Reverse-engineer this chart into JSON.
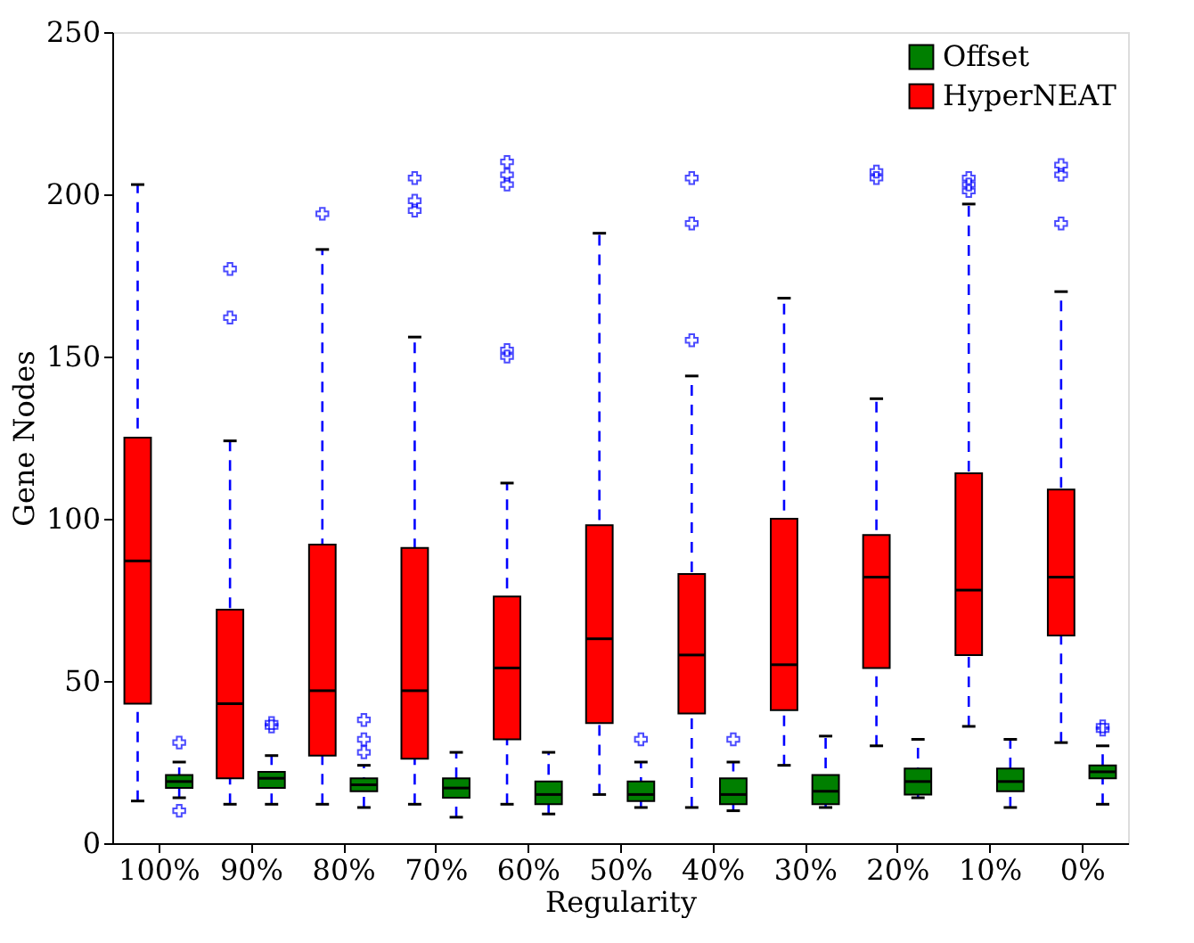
{
  "chart_data": {
    "type": "box",
    "xlabel": "Regularity",
    "ylabel": "Gene Nodes",
    "categories": [
      "100%",
      "90%",
      "80%",
      "70%",
      "60%",
      "50%",
      "40%",
      "30%",
      "20%",
      "10%",
      "0%"
    ],
    "ylim": [
      0,
      250
    ],
    "yticks": [
      0,
      50,
      100,
      150,
      200,
      250
    ],
    "legend": "top right",
    "marker": "cross",
    "series": [
      {
        "name": "Offset",
        "color": "#007f00",
        "boxes": [
          {
            "low": 14,
            "q1": 17,
            "median": 19,
            "q3": 21,
            "high": 25,
            "outliers": [
              31,
              10
            ]
          },
          {
            "low": 12,
            "q1": 17,
            "median": 20,
            "q3": 22,
            "high": 27,
            "outliers": [
              36,
              37
            ]
          },
          {
            "low": 11,
            "q1": 16,
            "median": 18,
            "q3": 20,
            "high": 24,
            "outliers": [
              28,
              32,
              38
            ]
          },
          {
            "low": 8,
            "q1": 14,
            "median": 17,
            "q3": 20,
            "high": 28
          },
          {
            "low": 9,
            "q1": 12,
            "median": 15,
            "q3": 19,
            "high": 28
          },
          {
            "low": 11,
            "q1": 13,
            "median": 15,
            "q3": 19,
            "high": 25,
            "outliers": [
              32
            ]
          },
          {
            "low": 10,
            "q1": 12,
            "median": 15,
            "q3": 20,
            "high": 25,
            "outliers": [
              32
            ]
          },
          {
            "low": 11,
            "q1": 12,
            "median": 16,
            "q3": 21,
            "high": 33
          },
          {
            "low": 14,
            "q1": 15,
            "median": 19,
            "q3": 23,
            "high": 32
          },
          {
            "low": 11,
            "q1": 16,
            "median": 19,
            "q3": 23,
            "high": 32
          },
          {
            "low": 12,
            "q1": 20,
            "median": 22,
            "q3": 24,
            "high": 30,
            "outliers": [
              35,
              36
            ]
          }
        ]
      },
      {
        "name": "HyperNEAT",
        "color": "#ff0000",
        "boxes": [
          {
            "low": 13,
            "q1": 43,
            "median": 87,
            "q3": 125,
            "high": 203
          },
          {
            "low": 12,
            "q1": 20,
            "median": 43,
            "q3": 72,
            "high": 124,
            "outliers": [
              162,
              177
            ]
          },
          {
            "low": 12,
            "q1": 27,
            "median": 47,
            "q3": 92,
            "high": 183,
            "outliers": [
              194
            ]
          },
          {
            "low": 12,
            "q1": 26,
            "median": 47,
            "q3": 91,
            "high": 156,
            "outliers": [
              195,
              198,
              205
            ]
          },
          {
            "low": 12,
            "q1": 32,
            "median": 54,
            "q3": 76,
            "high": 111,
            "outliers": [
              150,
              152,
              203,
              206,
              210
            ]
          },
          {
            "low": 15,
            "q1": 37,
            "median": 63,
            "q3": 98,
            "high": 188
          },
          {
            "low": 11,
            "q1": 40,
            "median": 58,
            "q3": 83,
            "high": 144,
            "outliers": [
              155,
              191,
              205
            ]
          },
          {
            "low": 24,
            "q1": 41,
            "median": 55,
            "q3": 100,
            "high": 168
          },
          {
            "low": 30,
            "q1": 54,
            "median": 82,
            "q3": 95,
            "high": 137,
            "outliers": [
              205,
              207
            ]
          },
          {
            "low": 36,
            "q1": 58,
            "median": 78,
            "q3": 114,
            "high": 197,
            "outliers": [
              201,
              203,
              205
            ]
          },
          {
            "low": 31,
            "q1": 64,
            "median": 82,
            "q3": 109,
            "high": 170,
            "outliers": [
              191,
              206,
              209
            ]
          }
        ]
      }
    ]
  }
}
